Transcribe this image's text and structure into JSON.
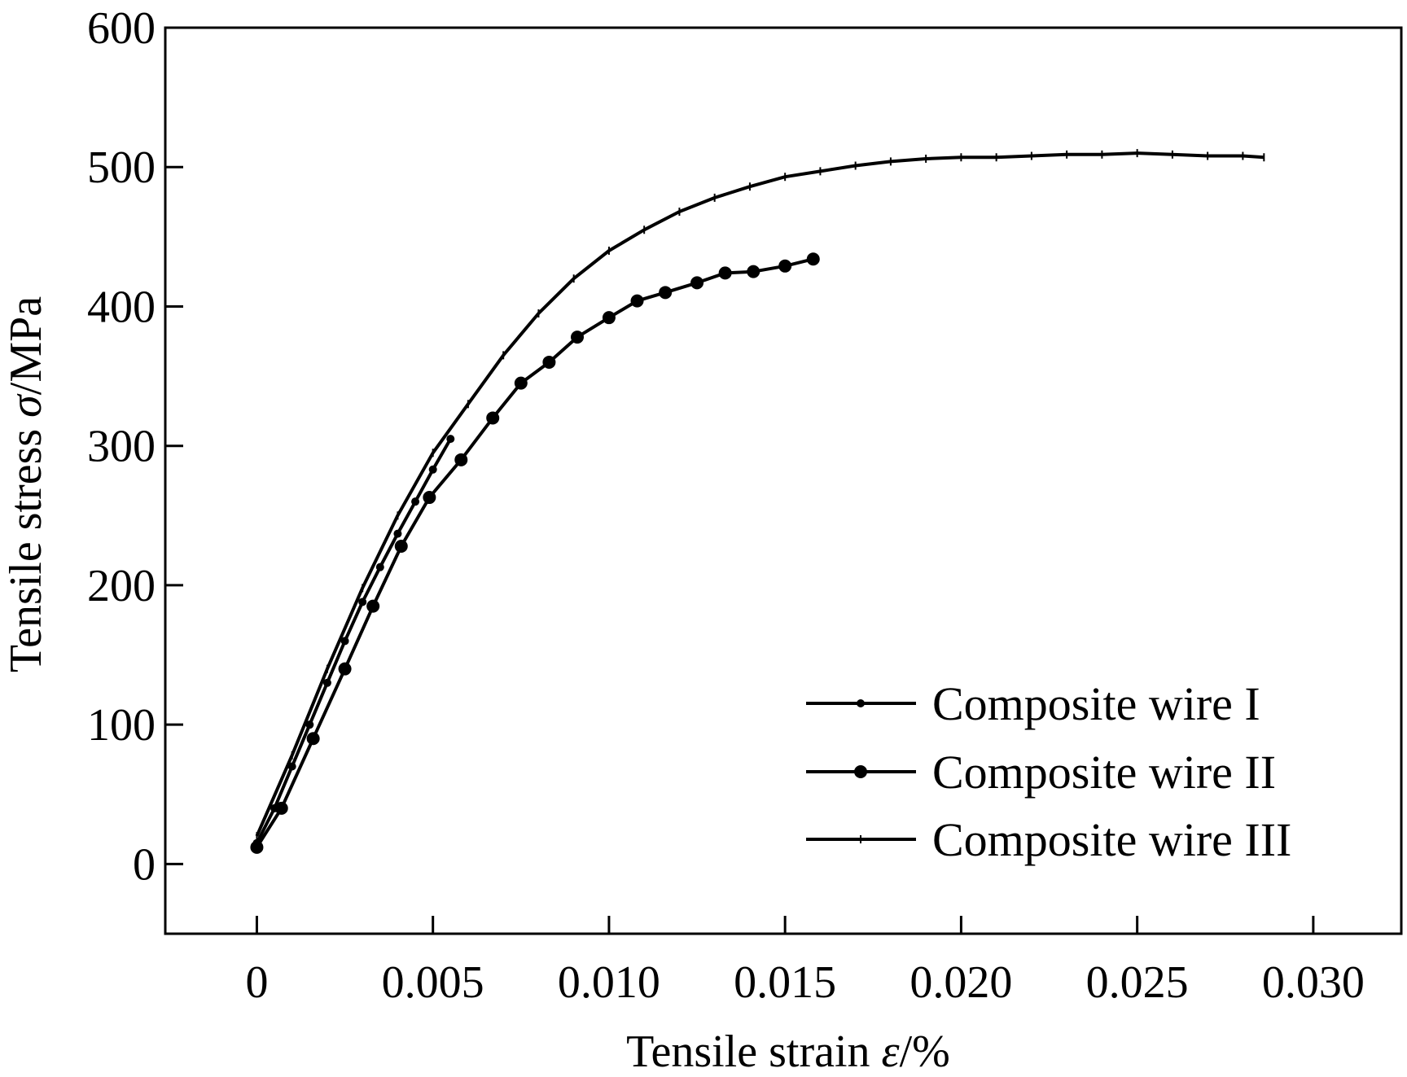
{
  "chart_data": {
    "type": "line",
    "xlabel": "Tensile strain",
    "xlabel_symbol": "ε",
    "xlabel_unit": "/%",
    "ylabel": "Tensile stress",
    "ylabel_symbol": "σ",
    "ylabel_unit": "/MPa",
    "xlim": [
      -0.0026,
      0.0325
    ],
    "ylim": [
      -50,
      600
    ],
    "x_ticks": [
      0,
      0.005,
      0.01,
      0.015,
      0.02,
      0.025,
      0.03
    ],
    "x_tick_labels": [
      "0",
      "0.005",
      "0.010",
      "0.015",
      "0.020",
      "0.025",
      "0.030"
    ],
    "y_ticks": [
      0,
      100,
      200,
      300,
      400,
      500,
      600
    ],
    "y_tick_labels": [
      "0",
      "100",
      "200",
      "300",
      "400",
      "500",
      "600"
    ],
    "grid": false,
    "legend_position": "bottom-right",
    "series": [
      {
        "name": "Composite wire I",
        "marker": "small-dot",
        "x": [
          0,
          0.0005,
          0.001,
          0.0015,
          0.002,
          0.0025,
          0.003,
          0.0035,
          0.004,
          0.0045,
          0.005,
          0.0055
        ],
        "y": [
          15,
          40,
          70,
          100,
          130,
          160,
          188,
          213,
          237,
          260,
          283,
          305
        ]
      },
      {
        "name": "Composite wire II",
        "marker": "large-dot",
        "x": [
          0,
          0.0007,
          0.0016,
          0.0025,
          0.0033,
          0.0041,
          0.0049,
          0.0058,
          0.0067,
          0.0075,
          0.0083,
          0.0091,
          0.01,
          0.0108,
          0.0116,
          0.0125,
          0.0133,
          0.0141,
          0.015,
          0.0158
        ],
        "y": [
          12,
          40,
          90,
          140,
          185,
          228,
          263,
          290,
          320,
          345,
          360,
          378,
          392,
          404,
          410,
          417,
          424,
          425,
          429,
          434
        ]
      },
      {
        "name": "Composite wire III",
        "marker": "tick",
        "x": [
          0,
          0.001,
          0.002,
          0.003,
          0.004,
          0.005,
          0.006,
          0.007,
          0.008,
          0.009,
          0.01,
          0.011,
          0.012,
          0.013,
          0.014,
          0.015,
          0.016,
          0.017,
          0.018,
          0.019,
          0.02,
          0.021,
          0.022,
          0.023,
          0.024,
          0.025,
          0.026,
          0.027,
          0.028,
          0.0286
        ],
        "y": [
          20,
          78,
          140,
          198,
          250,
          295,
          330,
          365,
          395,
          420,
          440,
          455,
          468,
          478,
          486,
          493,
          497,
          501,
          504,
          506,
          507,
          507,
          508,
          509,
          509,
          510,
          509,
          508,
          508,
          507
        ]
      }
    ]
  }
}
